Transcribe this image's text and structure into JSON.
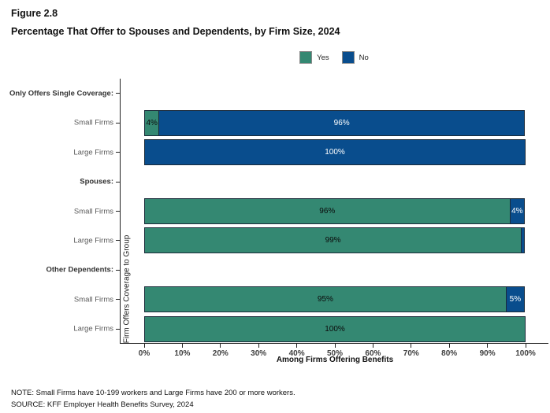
{
  "header": {
    "figure_label": "Figure 2.8",
    "title": "Percentage That Offer to Spouses and Dependents, by Firm Size, 2024"
  },
  "footer": {
    "note": "NOTE: Small Firms have 10-199 workers and Large Firms have 200 or more workers.",
    "source": "SOURCE: KFF Employer Health Benefits Survey, 2024"
  },
  "chart_data": {
    "type": "bar",
    "orientation": "horizontal",
    "stacked": true,
    "title": "Percentage That Offer to Spouses and Dependents, by Firm Size, 2024",
    "xlabel": "Among Firms Offering Benefits",
    "ylabel": "Firm Offers Coverage to Group",
    "xlim": [
      0,
      100
    ],
    "x_ticks": [
      "0%",
      "10%",
      "20%",
      "30%",
      "40%",
      "50%",
      "60%",
      "70%",
      "80%",
      "90%",
      "100%"
    ],
    "legend_position": "top",
    "grid": false,
    "series": [
      {
        "name": "Yes",
        "color": "#348872",
        "label_color": "#0b0b0b"
      },
      {
        "name": "No",
        "color": "#094D8D",
        "label_color": "#ffffff"
      }
    ],
    "rows": [
      {
        "label": "Only Offers Single Coverage:",
        "header": true
      },
      {
        "label": "Small Firms",
        "segments": [
          {
            "series": "Yes",
            "value": 4,
            "text": "4%"
          },
          {
            "series": "No",
            "value": 96,
            "text": "96%"
          }
        ]
      },
      {
        "label": "Large Firms",
        "segments": [
          {
            "series": "No",
            "value": 100,
            "text": "100%"
          }
        ]
      },
      {
        "label": "Spouses:",
        "header": true
      },
      {
        "label": "Small Firms",
        "segments": [
          {
            "series": "Yes",
            "value": 96,
            "text": "96%"
          },
          {
            "series": "No",
            "value": 4,
            "text": "4%"
          }
        ]
      },
      {
        "label": "Large Firms",
        "segments": [
          {
            "series": "Yes",
            "value": 99,
            "text": "99%"
          },
          {
            "series": "No",
            "value": 1,
            "text": ""
          }
        ]
      },
      {
        "label": "Other Dependents:",
        "header": true
      },
      {
        "label": "Small Firms",
        "segments": [
          {
            "series": "Yes",
            "value": 95,
            "text": "95%"
          },
          {
            "series": "No",
            "value": 5,
            "text": "5%"
          }
        ]
      },
      {
        "label": "Large Firms",
        "segments": [
          {
            "series": "Yes",
            "value": 100,
            "text": "100%"
          }
        ]
      }
    ]
  }
}
